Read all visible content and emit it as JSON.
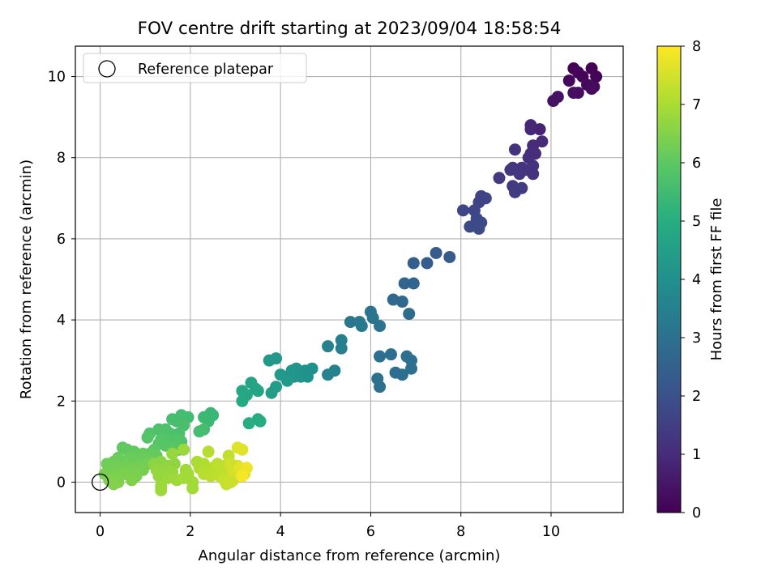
{
  "chart_data": {
    "type": "scatter",
    "title": "FOV centre drift starting at 2023/09/04 18:58:54",
    "xlabel": "Angular distance from reference (arcmin)",
    "ylabel": "Rotation from reference (arcmin)",
    "xlim": [
      -0.55,
      11.6
    ],
    "ylim": [
      -0.75,
      10.75
    ],
    "xticks": [
      0,
      2,
      4,
      6,
      8,
      10
    ],
    "yticks": [
      0,
      2,
      4,
      6,
      8,
      10
    ],
    "grid": true,
    "legend": {
      "placement": "top-left",
      "entries": [
        "Reference platepar"
      ]
    },
    "reference_point": {
      "x": 0,
      "y": 0,
      "marker": "open-circle"
    },
    "colorbar": {
      "label": "Hours from first FF file",
      "colormap": "viridis",
      "range": [
        0,
        8
      ],
      "ticks": [
        0,
        1,
        2,
        3,
        4,
        5,
        6,
        7,
        8
      ]
    },
    "points": [
      {
        "x": 10.5,
        "y": 10.2,
        "h": 0.05
      },
      {
        "x": 10.6,
        "y": 10.1,
        "h": 0.1
      },
      {
        "x": 10.4,
        "y": 9.9,
        "h": 0.15
      },
      {
        "x": 10.7,
        "y": 10.0,
        "h": 0.1
      },
      {
        "x": 10.9,
        "y": 10.2,
        "h": 0.05
      },
      {
        "x": 11.0,
        "y": 10.0,
        "h": 0.1
      },
      {
        "x": 10.8,
        "y": 9.8,
        "h": 0.2
      },
      {
        "x": 10.95,
        "y": 9.75,
        "h": 0.2
      },
      {
        "x": 10.9,
        "y": 9.7,
        "h": 0.25
      },
      {
        "x": 10.5,
        "y": 9.6,
        "h": 0.3
      },
      {
        "x": 10.6,
        "y": 9.6,
        "h": 0.3
      },
      {
        "x": 10.05,
        "y": 9.4,
        "h": 0.4
      },
      {
        "x": 10.15,
        "y": 9.5,
        "h": 0.4
      },
      {
        "x": 9.75,
        "y": 8.7,
        "h": 0.8
      },
      {
        "x": 9.55,
        "y": 8.8,
        "h": 0.85
      },
      {
        "x": 9.55,
        "y": 8.7,
        "h": 0.9
      },
      {
        "x": 9.8,
        "y": 8.4,
        "h": 0.95
      },
      {
        "x": 9.6,
        "y": 8.3,
        "h": 1.0
      },
      {
        "x": 9.55,
        "y": 8.1,
        "h": 1.05
      },
      {
        "x": 9.5,
        "y": 8.0,
        "h": 1.1
      },
      {
        "x": 9.65,
        "y": 8.1,
        "h": 1.05
      },
      {
        "x": 9.2,
        "y": 8.2,
        "h": 1.15
      },
      {
        "x": 9.6,
        "y": 7.8,
        "h": 1.2
      },
      {
        "x": 9.35,
        "y": 7.75,
        "h": 1.25
      },
      {
        "x": 9.1,
        "y": 7.7,
        "h": 1.3
      },
      {
        "x": 8.85,
        "y": 7.5,
        "h": 1.35
      },
      {
        "x": 9.3,
        "y": 7.6,
        "h": 1.3
      },
      {
        "x": 9.45,
        "y": 7.7,
        "h": 1.25
      },
      {
        "x": 9.15,
        "y": 7.75,
        "h": 1.3
      },
      {
        "x": 9.6,
        "y": 7.6,
        "h": 1.2
      },
      {
        "x": 9.15,
        "y": 7.3,
        "h": 1.4
      },
      {
        "x": 9.35,
        "y": 7.25,
        "h": 1.45
      },
      {
        "x": 9.2,
        "y": 7.15,
        "h": 1.45
      },
      {
        "x": 8.45,
        "y": 7.05,
        "h": 1.6
      },
      {
        "x": 8.55,
        "y": 7.0,
        "h": 1.65
      },
      {
        "x": 8.4,
        "y": 6.9,
        "h": 1.65
      },
      {
        "x": 8.05,
        "y": 6.7,
        "h": 1.7
      },
      {
        "x": 8.3,
        "y": 6.7,
        "h": 1.7
      },
      {
        "x": 8.35,
        "y": 6.5,
        "h": 1.75
      },
      {
        "x": 8.45,
        "y": 6.4,
        "h": 1.8
      },
      {
        "x": 8.2,
        "y": 6.3,
        "h": 1.8
      },
      {
        "x": 8.4,
        "y": 6.25,
        "h": 1.85
      },
      {
        "x": 7.45,
        "y": 5.65,
        "h": 2.3
      },
      {
        "x": 7.75,
        "y": 5.55,
        "h": 2.35
      },
      {
        "x": 6.95,
        "y": 5.4,
        "h": 2.45
      },
      {
        "x": 7.25,
        "y": 5.4,
        "h": 2.4
      },
      {
        "x": 6.95,
        "y": 4.9,
        "h": 2.6
      },
      {
        "x": 6.75,
        "y": 4.9,
        "h": 2.6
      },
      {
        "x": 6.5,
        "y": 4.5,
        "h": 2.75
      },
      {
        "x": 6.7,
        "y": 4.45,
        "h": 2.75
      },
      {
        "x": 6.85,
        "y": 4.15,
        "h": 2.85
      },
      {
        "x": 6.0,
        "y": 4.2,
        "h": 3.05
      },
      {
        "x": 6.05,
        "y": 4.05,
        "h": 3.1
      },
      {
        "x": 5.55,
        "y": 3.95,
        "h": 3.15
      },
      {
        "x": 5.75,
        "y": 3.95,
        "h": 3.2
      },
      {
        "x": 5.8,
        "y": 3.85,
        "h": 3.25
      },
      {
        "x": 6.2,
        "y": 3.85,
        "h": 3.1
      },
      {
        "x": 6.2,
        "y": 3.1,
        "h": 2.95
      },
      {
        "x": 6.45,
        "y": 3.15,
        "h": 2.9
      },
      {
        "x": 6.8,
        "y": 3.1,
        "h": 2.9
      },
      {
        "x": 6.9,
        "y": 3.0,
        "h": 2.9
      },
      {
        "x": 6.55,
        "y": 2.7,
        "h": 2.95
      },
      {
        "x": 6.7,
        "y": 2.65,
        "h": 2.95
      },
      {
        "x": 6.9,
        "y": 2.8,
        "h": 2.9
      },
      {
        "x": 6.15,
        "y": 2.55,
        "h": 3.0
      },
      {
        "x": 6.2,
        "y": 2.35,
        "h": 3.0
      },
      {
        "x": 5.35,
        "y": 3.5,
        "h": 3.45
      },
      {
        "x": 5.05,
        "y": 3.35,
        "h": 3.5
      },
      {
        "x": 5.35,
        "y": 3.3,
        "h": 3.45
      },
      {
        "x": 5.05,
        "y": 2.65,
        "h": 3.55
      },
      {
        "x": 5.2,
        "y": 2.75,
        "h": 3.55
      },
      {
        "x": 3.75,
        "y": 3.0,
        "h": 4.3
      },
      {
        "x": 3.9,
        "y": 3.05,
        "h": 4.35
      },
      {
        "x": 4.35,
        "y": 2.8,
        "h": 4.15
      },
      {
        "x": 4.55,
        "y": 2.75,
        "h": 4.1
      },
      {
        "x": 4.7,
        "y": 2.8,
        "h": 4.05
      },
      {
        "x": 4.25,
        "y": 2.75,
        "h": 4.2
      },
      {
        "x": 4.0,
        "y": 2.65,
        "h": 4.3
      },
      {
        "x": 4.15,
        "y": 2.6,
        "h": 4.25
      },
      {
        "x": 4.3,
        "y": 2.6,
        "h": 4.2
      },
      {
        "x": 4.45,
        "y": 2.6,
        "h": 4.15
      },
      {
        "x": 4.6,
        "y": 2.6,
        "h": 4.1
      },
      {
        "x": 4.15,
        "y": 2.5,
        "h": 4.3
      },
      {
        "x": 3.9,
        "y": 2.35,
        "h": 4.4
      },
      {
        "x": 3.8,
        "y": 2.2,
        "h": 4.45
      },
      {
        "x": 3.35,
        "y": 2.45,
        "h": 4.65
      },
      {
        "x": 3.45,
        "y": 2.3,
        "h": 4.7
      },
      {
        "x": 3.5,
        "y": 2.25,
        "h": 4.7
      },
      {
        "x": 3.15,
        "y": 2.25,
        "h": 4.75
      },
      {
        "x": 3.25,
        "y": 2.15,
        "h": 4.8
      },
      {
        "x": 3.15,
        "y": 2.0,
        "h": 4.85
      },
      {
        "x": 3.5,
        "y": 1.55,
        "h": 4.95
      },
      {
        "x": 3.55,
        "y": 1.5,
        "h": 4.95
      },
      {
        "x": 3.3,
        "y": 1.45,
        "h": 5.0
      },
      {
        "x": 2.45,
        "y": 1.7,
        "h": 5.35
      },
      {
        "x": 2.5,
        "y": 1.65,
        "h": 5.35
      },
      {
        "x": 2.3,
        "y": 1.6,
        "h": 5.4
      },
      {
        "x": 2.4,
        "y": 1.5,
        "h": 5.4
      },
      {
        "x": 1.8,
        "y": 1.65,
        "h": 5.55
      },
      {
        "x": 1.95,
        "y": 1.6,
        "h": 5.55
      },
      {
        "x": 1.6,
        "y": 1.55,
        "h": 5.6
      },
      {
        "x": 1.7,
        "y": 1.5,
        "h": 5.6
      },
      {
        "x": 1.85,
        "y": 1.4,
        "h": 5.65
      },
      {
        "x": 2.3,
        "y": 1.3,
        "h": 5.6
      },
      {
        "x": 2.2,
        "y": 1.25,
        "h": 5.6
      },
      {
        "x": 1.45,
        "y": 1.3,
        "h": 5.7
      },
      {
        "x": 1.3,
        "y": 1.3,
        "h": 5.75
      },
      {
        "x": 1.55,
        "y": 1.2,
        "h": 5.75
      },
      {
        "x": 1.75,
        "y": 1.2,
        "h": 5.7
      },
      {
        "x": 1.1,
        "y": 1.2,
        "h": 5.8
      },
      {
        "x": 1.05,
        "y": 1.1,
        "h": 5.85
      },
      {
        "x": 1.35,
        "y": 1.05,
        "h": 5.85
      },
      {
        "x": 1.5,
        "y": 1.0,
        "h": 5.85
      },
      {
        "x": 1.65,
        "y": 1.05,
        "h": 5.8
      },
      {
        "x": 1.8,
        "y": 1.0,
        "h": 5.8
      },
      {
        "x": 1.3,
        "y": 0.95,
        "h": 5.9
      },
      {
        "x": 1.45,
        "y": 0.9,
        "h": 5.9
      },
      {
        "x": 1.6,
        "y": 0.85,
        "h": 5.9
      },
      {
        "x": 1.2,
        "y": 0.8,
        "h": 5.95
      },
      {
        "x": 1.75,
        "y": 0.8,
        "h": 5.9
      },
      {
        "x": 0.5,
        "y": 0.85,
        "h": 6.05
      },
      {
        "x": 0.6,
        "y": 0.8,
        "h": 6.05
      },
      {
        "x": 0.75,
        "y": 0.75,
        "h": 6.05
      },
      {
        "x": 0.95,
        "y": 0.7,
        "h": 6.1
      },
      {
        "x": 1.1,
        "y": 0.7,
        "h": 6.1
      },
      {
        "x": 1.25,
        "y": 0.65,
        "h": 6.1
      },
      {
        "x": 0.8,
        "y": 0.65,
        "h": 6.1
      },
      {
        "x": 0.4,
        "y": 0.6,
        "h": 6.15
      },
      {
        "x": 0.65,
        "y": 0.6,
        "h": 6.15
      },
      {
        "x": 0.9,
        "y": 0.6,
        "h": 6.15
      },
      {
        "x": 1.05,
        "y": 0.55,
        "h": 6.2
      },
      {
        "x": 0.3,
        "y": 0.5,
        "h": 6.2
      },
      {
        "x": 0.5,
        "y": 0.5,
        "h": 6.2
      },
      {
        "x": 0.75,
        "y": 0.5,
        "h": 6.2
      },
      {
        "x": 0.15,
        "y": 0.45,
        "h": 6.25
      },
      {
        "x": 0.35,
        "y": 0.4,
        "h": 6.25
      },
      {
        "x": 0.6,
        "y": 0.4,
        "h": 6.25
      },
      {
        "x": 0.85,
        "y": 0.4,
        "h": 6.3
      },
      {
        "x": 1.05,
        "y": 0.45,
        "h": 6.3
      },
      {
        "x": 0.2,
        "y": 0.3,
        "h": 6.3
      },
      {
        "x": 0.45,
        "y": 0.3,
        "h": 6.35
      },
      {
        "x": 0.7,
        "y": 0.3,
        "h": 6.35
      },
      {
        "x": 0.95,
        "y": 0.3,
        "h": 6.35
      },
      {
        "x": 0.1,
        "y": 0.2,
        "h": 6.35
      },
      {
        "x": 0.3,
        "y": 0.15,
        "h": 6.4
      },
      {
        "x": 0.55,
        "y": 0.2,
        "h": 6.4
      },
      {
        "x": 0.8,
        "y": 0.15,
        "h": 6.4
      },
      {
        "x": 0.2,
        "y": 0.05,
        "h": 6.45
      },
      {
        "x": 0.4,
        "y": 0.0,
        "h": 6.45
      },
      {
        "x": 0.3,
        "y": -0.05,
        "h": 6.5
      },
      {
        "x": 0.7,
        "y": 0.05,
        "h": 6.45
      },
      {
        "x": 1.2,
        "y": 0.45,
        "h": 6.6
      },
      {
        "x": 1.35,
        "y": 0.5,
        "h": 6.6
      },
      {
        "x": 1.5,
        "y": 0.4,
        "h": 6.65
      },
      {
        "x": 1.65,
        "y": 0.45,
        "h": 6.65
      },
      {
        "x": 1.25,
        "y": 0.3,
        "h": 6.7
      },
      {
        "x": 1.45,
        "y": 0.3,
        "h": 6.7
      },
      {
        "x": 1.6,
        "y": 0.25,
        "h": 6.75
      },
      {
        "x": 1.3,
        "y": 0.15,
        "h": 6.75
      },
      {
        "x": 1.5,
        "y": 0.1,
        "h": 6.8
      },
      {
        "x": 1.35,
        "y": -0.1,
        "h": 6.8
      },
      {
        "x": 1.35,
        "y": -0.2,
        "h": 6.85
      },
      {
        "x": 1.7,
        "y": 0.05,
        "h": 6.85
      },
      {
        "x": 1.9,
        "y": 0.3,
        "h": 6.85
      },
      {
        "x": 1.95,
        "y": 0.2,
        "h": 6.9
      },
      {
        "x": 1.85,
        "y": 0.1,
        "h": 6.9
      },
      {
        "x": 2.05,
        "y": 0.0,
        "h": 6.9
      },
      {
        "x": 2.05,
        "y": -0.15,
        "h": 6.9
      },
      {
        "x": 1.6,
        "y": 0.7,
        "h": 6.75
      },
      {
        "x": 1.85,
        "y": 0.8,
        "h": 6.8
      },
      {
        "x": 2.15,
        "y": 0.5,
        "h": 7.0
      },
      {
        "x": 2.3,
        "y": 0.45,
        "h": 7.05
      },
      {
        "x": 2.2,
        "y": 0.35,
        "h": 7.05
      },
      {
        "x": 2.35,
        "y": 0.3,
        "h": 7.1
      },
      {
        "x": 2.5,
        "y": 0.35,
        "h": 7.1
      },
      {
        "x": 2.3,
        "y": 0.2,
        "h": 7.15
      },
      {
        "x": 2.55,
        "y": 0.25,
        "h": 7.15
      },
      {
        "x": 2.7,
        "y": 0.3,
        "h": 7.2
      },
      {
        "x": 2.4,
        "y": 0.75,
        "h": 7.15
      },
      {
        "x": 2.6,
        "y": 0.45,
        "h": 7.2
      },
      {
        "x": 2.45,
        "y": 0.15,
        "h": 7.2
      },
      {
        "x": 2.65,
        "y": 0.15,
        "h": 7.25
      },
      {
        "x": 2.85,
        "y": 0.25,
        "h": 7.3
      },
      {
        "x": 2.75,
        "y": 0.4,
        "h": 7.3
      },
      {
        "x": 2.85,
        "y": 0.65,
        "h": 7.3
      },
      {
        "x": 2.75,
        "y": 0.05,
        "h": 7.35
      },
      {
        "x": 2.8,
        "y": -0.05,
        "h": 7.35
      },
      {
        "x": 2.95,
        "y": 0.05,
        "h": 7.4
      },
      {
        "x": 2.95,
        "y": 0.3,
        "h": 7.45
      },
      {
        "x": 3.05,
        "y": 0.4,
        "h": 7.5
      },
      {
        "x": 3.15,
        "y": 0.3,
        "h": 7.55
      },
      {
        "x": 3.2,
        "y": 0.2,
        "h": 7.6
      },
      {
        "x": 3.0,
        "y": 0.2,
        "h": 7.5
      },
      {
        "x": 2.9,
        "y": 0.45,
        "h": 7.45
      },
      {
        "x": 3.05,
        "y": 0.85,
        "h": 7.6
      },
      {
        "x": 3.15,
        "y": 0.8,
        "h": 7.65
      },
      {
        "x": 3.1,
        "y": 0.35,
        "h": 7.65
      },
      {
        "x": 3.25,
        "y": 0.35,
        "h": 7.8
      },
      {
        "x": 2.6,
        "y": 0.35,
        "h": 7.25
      },
      {
        "x": 2.9,
        "y": 0.0,
        "h": 7.4
      },
      {
        "x": 3.15,
        "y": 0.15,
        "h": 7.9
      }
    ]
  }
}
